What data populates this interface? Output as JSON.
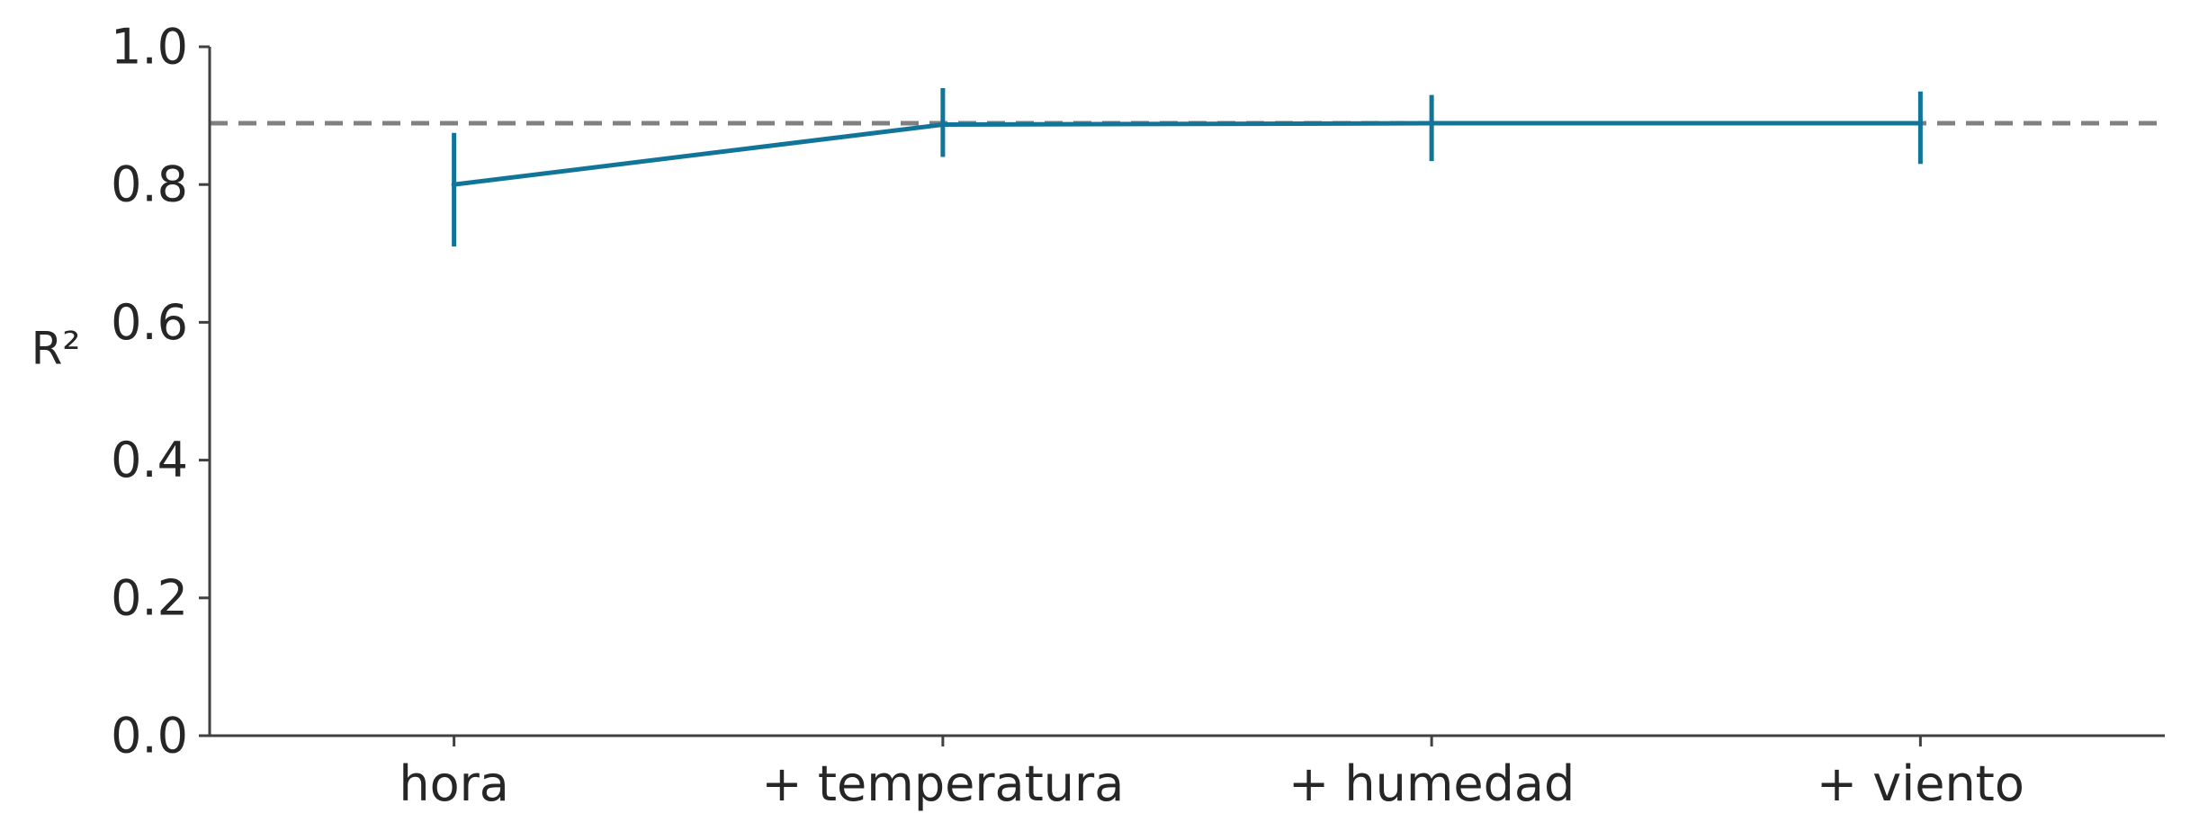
{
  "chart_data": {
    "type": "line",
    "title": "",
    "xlabel": "",
    "ylabel": "R²",
    "categories": [
      "hora",
      "+ temperatura",
      "+ humedad",
      "+ viento"
    ],
    "series": [
      {
        "values": [
          0.8,
          0.887,
          0.889,
          0.889
        ],
        "error_low": [
          0.71,
          0.84,
          0.834,
          0.83
        ],
        "error_high": [
          0.875,
          0.94,
          0.93,
          0.935
        ],
        "color": "#11759a"
      }
    ],
    "reference_line": {
      "y": 0.889,
      "style": "dashed",
      "color": "#808080"
    },
    "ylim": [
      0.0,
      1.0
    ],
    "yticks": [
      "0.0",
      "0.2",
      "0.4",
      "0.6",
      "0.8",
      "1.0"
    ],
    "grid": false,
    "legend": "none",
    "axis_color": "#404040"
  }
}
